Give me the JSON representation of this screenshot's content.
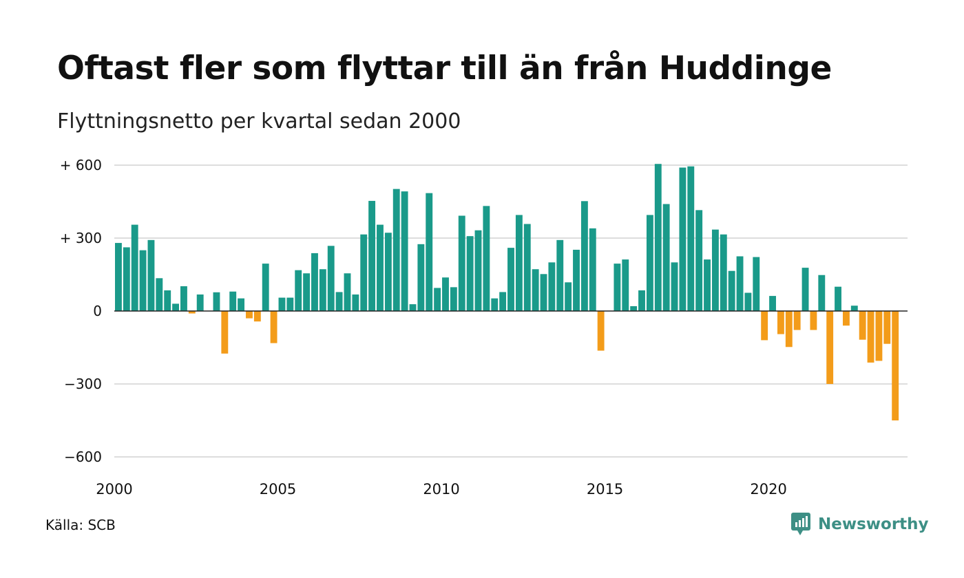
{
  "header": {
    "title": "Oftast fler som flyttar till än från Huddinge",
    "subtitle": "Flyttningsnetto per kvartal sedan 2000"
  },
  "footer": {
    "source": "Källa: SCB",
    "brand": "Newsworthy"
  },
  "colors": {
    "positive": "#1a9a8a",
    "negative": "#f39c1a",
    "grid": "#dddddd",
    "zero_line": "#222222",
    "brand": "#3d8f85"
  },
  "icons": {
    "brand_logo": "newsworthy-logo-icon"
  },
  "chart_data": {
    "type": "bar",
    "title": "",
    "xlabel": "",
    "ylabel": "",
    "ylim": [
      -600,
      600
    ],
    "y_ticks": [
      {
        "value": 600,
        "label": "+ 600"
      },
      {
        "value": 300,
        "label": "+ 300"
      },
      {
        "value": 0,
        "label": "0"
      },
      {
        "value": -300,
        "label": "−300"
      },
      {
        "value": -600,
        "label": "−600"
      }
    ],
    "x_ticks": [
      {
        "value": 2000,
        "label": "2000"
      },
      {
        "value": 2005,
        "label": "2005"
      },
      {
        "value": 2010,
        "label": "2010"
      },
      {
        "value": 2015,
        "label": "2015"
      },
      {
        "value": 2020,
        "label": "2020"
      }
    ],
    "x_domain": [
      2000,
      2024.25
    ],
    "x_start": 2000,
    "period": "quarter",
    "grid": true,
    "legend": "none",
    "values": [
      280,
      262,
      355,
      250,
      292,
      135,
      85,
      30,
      102,
      -10,
      68,
      0,
      77,
      -175,
      80,
      52,
      -30,
      -43,
      195,
      -132,
      55,
      55,
      168,
      155,
      238,
      172,
      268,
      78,
      155,
      68,
      315,
      453,
      355,
      322,
      502,
      492,
      28,
      275,
      485,
      95,
      138,
      98,
      392,
      308,
      332,
      432,
      52,
      78,
      260,
      395,
      358,
      172,
      152,
      200,
      292,
      118,
      252,
      452,
      340,
      -163,
      0,
      195,
      212,
      20,
      85,
      395,
      605,
      440,
      200,
      590,
      595,
      415,
      212,
      335,
      315,
      165,
      225,
      75,
      222,
      -120,
      62,
      -95,
      -148,
      -78,
      178,
      -78,
      148,
      -300,
      100,
      -60,
      22,
      -118,
      -212,
      -205,
      -135,
      -450
    ]
  }
}
